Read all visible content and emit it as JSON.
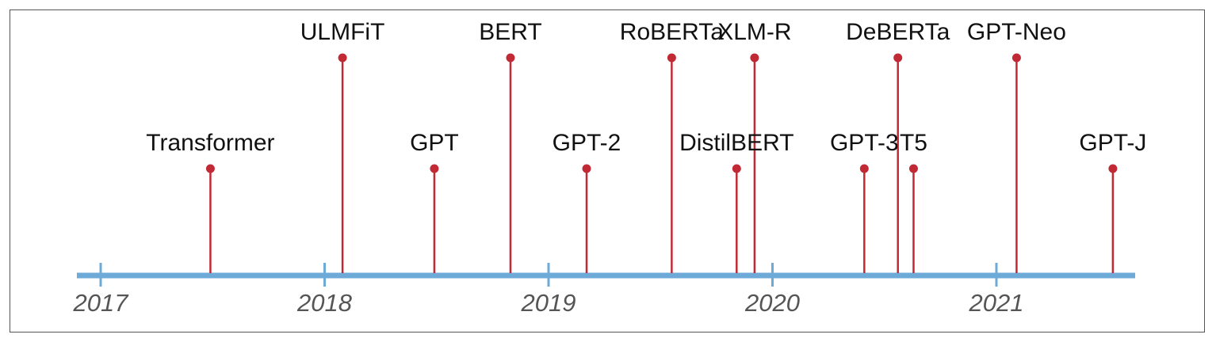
{
  "colors": {
    "axis": "#6eaad8",
    "stem": "#c12a35",
    "text": "#111111",
    "year_text": "#555555",
    "border": "#555555"
  },
  "timeline": {
    "years": [
      "2017",
      "2018",
      "2019",
      "2020",
      "2021"
    ],
    "range": [
      2016.9,
      2021.62
    ],
    "events": [
      {
        "label": "Transformer",
        "date": 2017.49,
        "tier": "low"
      },
      {
        "label": "ULMFiT",
        "date": 2018.08,
        "tier": "high"
      },
      {
        "label": "GPT",
        "date": 2018.49,
        "tier": "low"
      },
      {
        "label": "BERT",
        "date": 2018.83,
        "tier": "high"
      },
      {
        "label": "GPT-2",
        "date": 2019.17,
        "tier": "low"
      },
      {
        "label": "RoBERTa",
        "date": 2019.55,
        "tier": "high"
      },
      {
        "label": "DistilBERT",
        "date": 2019.84,
        "tier": "low"
      },
      {
        "label": "XLM-R",
        "date": 2019.92,
        "tier": "high"
      },
      {
        "label": "GPT-3",
        "date": 2020.41,
        "tier": "low"
      },
      {
        "label": "DeBERTa",
        "date": 2020.56,
        "tier": "high"
      },
      {
        "label": "T5",
        "date": 2020.63,
        "tier": "low"
      },
      {
        "label": "GPT-Neo",
        "date": 2021.09,
        "tier": "high"
      },
      {
        "label": "GPT-J",
        "date": 2021.52,
        "tier": "low"
      }
    ]
  }
}
